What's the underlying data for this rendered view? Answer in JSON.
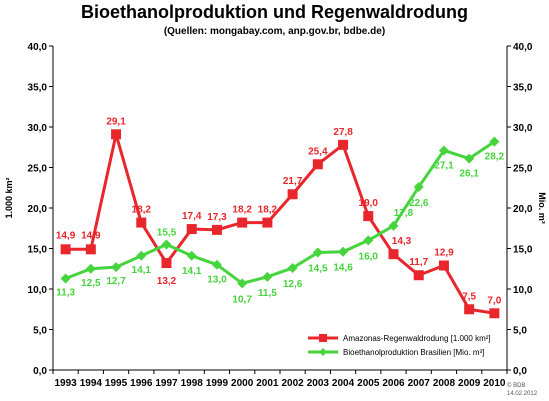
{
  "header": {
    "title": "Bioethanolproduktion und Regenwaldrodung",
    "subtitle": "(Quellen: mongabay.com, anp.gov.br, bdbe.de)"
  },
  "footer": {
    "copyright": "© BDB",
    "date": "14.02.2012"
  },
  "chart_data": {
    "type": "line",
    "title": "Bioethanolproduktion und Regenwaldrodung",
    "subtitle": "(Quellen: mongabay.com, anp.gov.br, bdbe.de)",
    "x": [
      "1993",
      "1994",
      "1995",
      "1996",
      "1997",
      "1998",
      "1999",
      "2000",
      "2001",
      "2002",
      "2003",
      "2004",
      "2005",
      "2006",
      "2007",
      "2008",
      "2009",
      "2010"
    ],
    "ylabel_left": "1.000 km²",
    "ylabel_right": "Mio. m³",
    "ylim": [
      0,
      40
    ],
    "yticks": [
      "0,0",
      "5,0",
      "10,0",
      "15,0",
      "20,0",
      "25,0",
      "30,0",
      "35,0",
      "40,0"
    ],
    "grid": false,
    "legend_position": "bottom-right",
    "series": [
      {
        "name": "Amazonas-Regenwaldrodung [1.000 km²]",
        "color": "#e8262b",
        "marker": "square",
        "values": [
          14.9,
          14.9,
          29.1,
          18.2,
          13.2,
          17.4,
          17.3,
          18.2,
          18.2,
          21.7,
          25.4,
          27.8,
          19.0,
          14.3,
          11.7,
          12.9,
          7.5,
          7.0
        ],
        "labels": [
          "14,9",
          "14,9",
          "29,1",
          "18,2",
          "13,2",
          "17,4",
          "17,3",
          "18,2",
          "18,2",
          "21,7",
          "25,4",
          "27,8",
          "19,0",
          "14,3",
          "11,7",
          "12,9",
          "7,5",
          "7,0"
        ]
      },
      {
        "name": "Bioethanolproduktion Brasilien [Mio. m³]",
        "color": "#45d43c",
        "marker": "diamond",
        "values": [
          11.3,
          12.5,
          12.7,
          14.1,
          15.5,
          14.1,
          13.0,
          10.7,
          11.5,
          12.6,
          14.5,
          14.6,
          16.0,
          17.8,
          22.6,
          27.1,
          26.1,
          28.2
        ],
        "labels": [
          "11,3",
          "12,5",
          "12,7",
          "14,1",
          "15,5",
          "14,1",
          "13,0",
          "10,7",
          "11,5",
          "12,6",
          "14,5",
          "14,6",
          "16,0",
          "17,8",
          "22,6",
          "27,1",
          "26,1",
          "28,2"
        ]
      }
    ]
  }
}
